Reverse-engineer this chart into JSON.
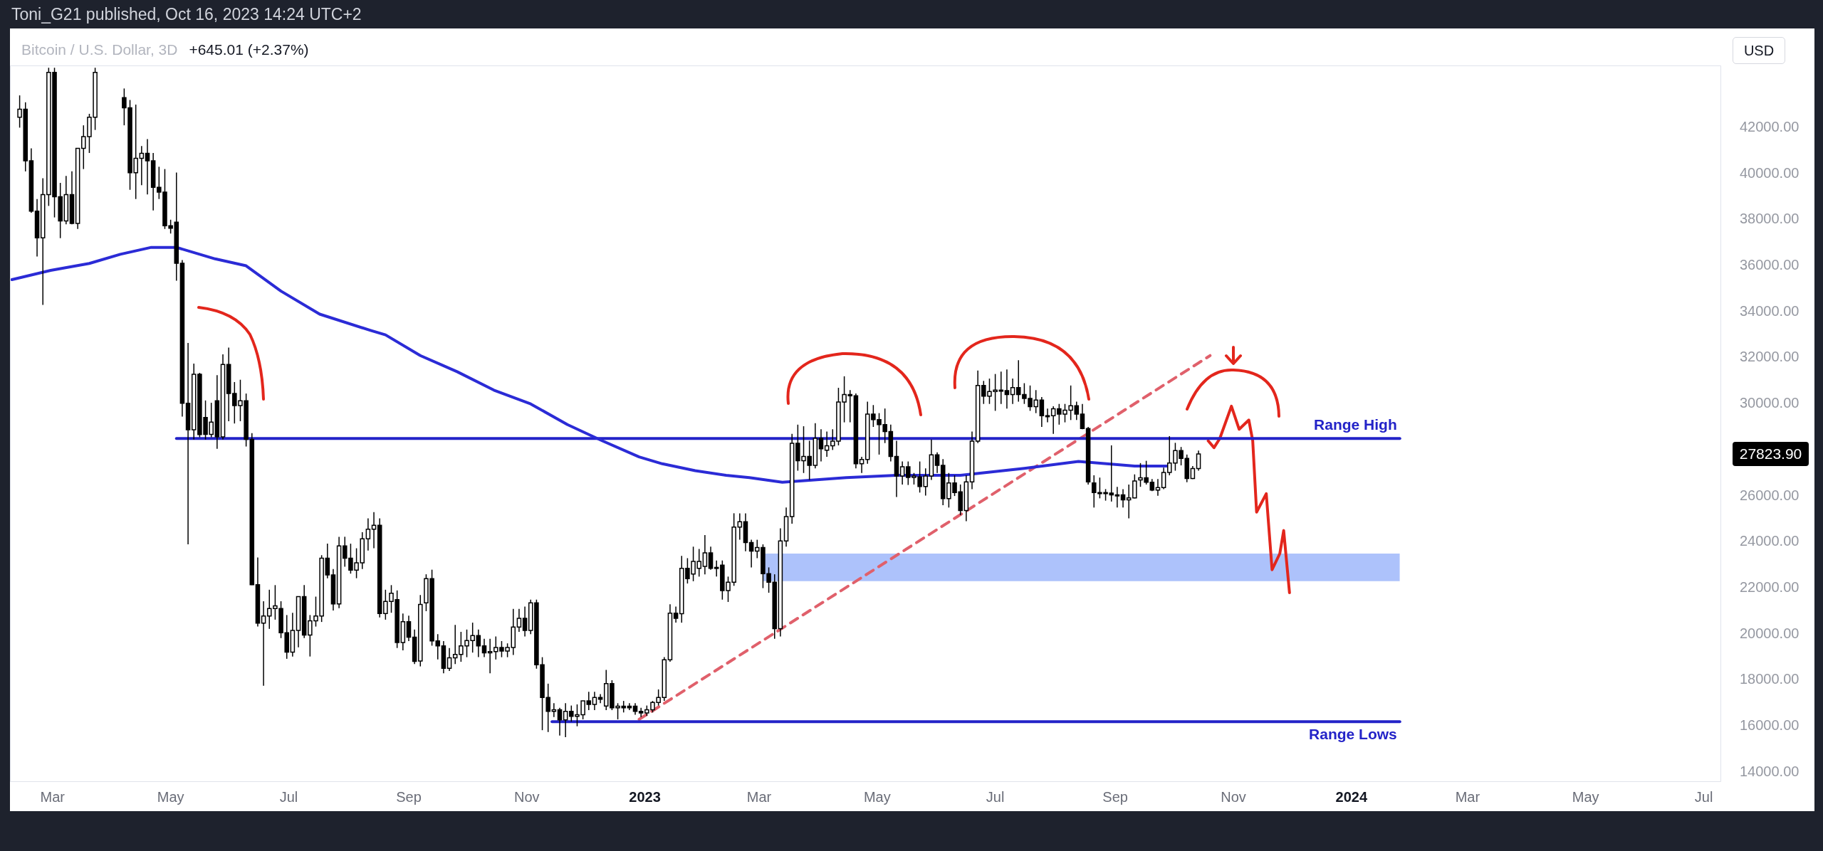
{
  "chart_data": {
    "type": "candlestick",
    "title": "Toni_G21 published, Oct 16, 2023 14:24 UTC+2",
    "subtitle": "Bitcoin / U.S. Dollar, 3D",
    "annotations": [
      "+645.01 (+2.37%)",
      "USD",
      "27823.90"
    ],
    "x": [
      "2022-02-12",
      "2022-02-15",
      "2022-02-18",
      "2022-02-21",
      "2022-02-24",
      "2022-02-27",
      "2022-03-02",
      "2022-03-05",
      "2022-03-08",
      "2022-03-11",
      "2022-03-14",
      "2022-03-17",
      "2022-03-20",
      "2022-03-23",
      "2022-04-07",
      "2022-04-10",
      "2022-04-13",
      "2022-04-16",
      "2022-04-19",
      "2022-04-22",
      "2022-04-25",
      "2022-04-28",
      "2022-05-01",
      "2022-05-04",
      "2022-05-07",
      "2022-05-10",
      "2022-05-13",
      "2022-05-16",
      "2022-05-19",
      "2022-05-22",
      "2022-05-25",
      "2022-05-28",
      "2022-05-31",
      "2022-06-03",
      "2022-06-06",
      "2022-06-09",
      "2022-06-12",
      "2022-06-15",
      "2022-06-18",
      "2022-06-21",
      "2022-06-24",
      "2022-06-27",
      "2022-06-30",
      "2022-07-03",
      "2022-07-06",
      "2022-07-09",
      "2022-07-12",
      "2022-07-15",
      "2022-07-18",
      "2022-07-21",
      "2022-07-24",
      "2022-07-27",
      "2022-07-30",
      "2022-08-02",
      "2022-08-05",
      "2022-08-08",
      "2022-08-11",
      "2022-08-14",
      "2022-08-17",
      "2022-08-20",
      "2022-08-23",
      "2022-08-26",
      "2022-08-29",
      "2022-09-01",
      "2022-09-04",
      "2022-09-07",
      "2022-09-10",
      "2022-09-13",
      "2022-09-16",
      "2022-09-19",
      "2022-09-22",
      "2022-09-25",
      "2022-09-28",
      "2022-10-01",
      "2022-10-04",
      "2022-10-07",
      "2022-10-10",
      "2022-10-13",
      "2022-10-16",
      "2022-10-19",
      "2022-10-22",
      "2022-10-25",
      "2022-10-28",
      "2022-10-31",
      "2022-11-03",
      "2022-11-06",
      "2022-11-09",
      "2022-11-12",
      "2022-11-15",
      "2022-11-18",
      "2022-11-21",
      "2022-11-24",
      "2022-11-27",
      "2022-11-30",
      "2022-12-03",
      "2022-12-06",
      "2022-12-09",
      "2022-12-12",
      "2022-12-15",
      "2022-12-18",
      "2022-12-21",
      "2022-12-24",
      "2022-12-27",
      "2022-12-30",
      "2023-01-02",
      "2023-01-05",
      "2023-01-08",
      "2023-01-11",
      "2023-01-14",
      "2023-01-17",
      "2023-01-20",
      "2023-01-23",
      "2023-01-26",
      "2023-01-29",
      "2023-02-01",
      "2023-02-04",
      "2023-02-07",
      "2023-02-10",
      "2023-02-13",
      "2023-02-16",
      "2023-02-19",
      "2023-02-22",
      "2023-02-25",
      "2023-02-28",
      "2023-03-03",
      "2023-03-06",
      "2023-03-09",
      "2023-03-12",
      "2023-03-15",
      "2023-03-18",
      "2023-03-21",
      "2023-03-24",
      "2023-03-27",
      "2023-03-30",
      "2023-04-02",
      "2023-04-05",
      "2023-04-08",
      "2023-04-11",
      "2023-04-14",
      "2023-04-17",
      "2023-04-20",
      "2023-04-23",
      "2023-04-26",
      "2023-04-29",
      "2023-05-02",
      "2023-05-05",
      "2023-05-08",
      "2023-05-11",
      "2023-05-14",
      "2023-05-17",
      "2023-05-20",
      "2023-05-23",
      "2023-05-26",
      "2023-05-29",
      "2023-06-01",
      "2023-06-04",
      "2023-06-07",
      "2023-06-10",
      "2023-06-13",
      "2023-06-16",
      "2023-06-19",
      "2023-06-22",
      "2023-06-25",
      "2023-06-28",
      "2023-07-01",
      "2023-07-04",
      "2023-07-07",
      "2023-07-10",
      "2023-07-13",
      "2023-07-16",
      "2023-07-19",
      "2023-07-22",
      "2023-07-25",
      "2023-07-28",
      "2023-07-31",
      "2023-08-03",
      "2023-08-06",
      "2023-08-09",
      "2023-08-12",
      "2023-08-15",
      "2023-08-18",
      "2023-08-21",
      "2023-08-24",
      "2023-08-27",
      "2023-08-30",
      "2023-09-02",
      "2023-09-05",
      "2023-09-08",
      "2023-09-11",
      "2023-09-14",
      "2023-09-17",
      "2023-09-20",
      "2023-09-23",
      "2023-09-26",
      "2023-09-29",
      "2023-10-02",
      "2023-10-05",
      "2023-10-08",
      "2023-10-11",
      "2023-10-14"
    ],
    "ohlc": [
      [
        42450,
        43400,
        42000,
        42800
      ],
      [
        42800,
        43100,
        40100,
        40560
      ],
      [
        40560,
        41100,
        38300,
        38370
      ],
      [
        38370,
        38900,
        36400,
        37210
      ],
      [
        37210,
        39800,
        34300,
        39090
      ],
      [
        39090,
        44600,
        38600,
        44400
      ],
      [
        44400,
        44600,
        38100,
        39000
      ],
      [
        39000,
        39600,
        37200,
        37950
      ],
      [
        37950,
        39900,
        37800,
        39090
      ],
      [
        39090,
        40100,
        37800,
        37840
      ],
      [
        37840,
        41100,
        37600,
        41100
      ],
      [
        41100,
        42100,
        40200,
        41610
      ],
      [
        41610,
        42600,
        40900,
        42450
      ],
      [
        42450,
        44600,
        41900,
        44400
      ],
      [
        43300,
        43700,
        42100,
        42860
      ],
      [
        42860,
        43200,
        39300,
        40040
      ],
      [
        40040,
        43000,
        38900,
        40670
      ],
      [
        40670,
        41200,
        39500,
        40880
      ],
      [
        40880,
        41500,
        39100,
        40560
      ],
      [
        40560,
        40900,
        38400,
        39410
      ],
      [
        39410,
        40300,
        38900,
        39200
      ],
      [
        39200,
        40200,
        37600,
        37740
      ],
      [
        37740,
        38000,
        37400,
        37630
      ],
      [
        37890,
        40050,
        35350,
        36110
      ],
      [
        36110,
        36250,
        29450,
        30030
      ],
      [
        30030,
        32650,
        23900,
        28880
      ],
      [
        28880,
        31750,
        28450,
        31290
      ],
      [
        31290,
        31350,
        28550,
        28670
      ],
      [
        29410,
        30150,
        28450,
        28680
      ],
      [
        28680,
        30050,
        28550,
        29210
      ],
      [
        30140,
        31250,
        28050,
        28570
      ],
      [
        28570,
        32150,
        28450,
        31710
      ],
      [
        31710,
        32450,
        29250,
        30450
      ],
      [
        30450,
        30950,
        29150,
        29930
      ],
      [
        29930,
        31050,
        29250,
        30140
      ],
      [
        30140,
        30450,
        28150,
        28460
      ],
      [
        28460,
        28730,
        22130,
        22150
      ],
      [
        22150,
        23330,
        20330,
        20480
      ],
      [
        20480,
        21430,
        17760,
        20790
      ],
      [
        20790,
        21930,
        20230,
        21110
      ],
      [
        21110,
        22130,
        20630,
        21230
      ],
      [
        21110,
        21430,
        19830,
        20060
      ],
      [
        20060,
        20830,
        18930,
        19220
      ],
      [
        19220,
        20930,
        19030,
        20160
      ],
      [
        20160,
        21630,
        19430,
        21630
      ],
      [
        21630,
        22130,
        19830,
        19960
      ],
      [
        19960,
        20830,
        19030,
        20580
      ],
      [
        20580,
        21630,
        20330,
        20790
      ],
      [
        20790,
        23430,
        20530,
        23300
      ],
      [
        23300,
        23930,
        22430,
        22570
      ],
      [
        22570,
        22830,
        21030,
        21310
      ],
      [
        21310,
        24230,
        21130,
        23830
      ],
      [
        23830,
        24230,
        22930,
        23300
      ],
      [
        23300,
        23930,
        22630,
        22780
      ],
      [
        22780,
        23730,
        22430,
        23100
      ],
      [
        23100,
        24430,
        22830,
        24140
      ],
      [
        24140,
        25030,
        23630,
        24560
      ],
      [
        24560,
        25300,
        23730,
        24730
      ],
      [
        24730,
        25030,
        20730,
        20900
      ],
      [
        20900,
        21930,
        20630,
        21420
      ],
      [
        21420,
        22130,
        20930,
        21780
      ],
      [
        21500,
        21900,
        19400,
        19640
      ],
      [
        19640,
        20900,
        19300,
        20540
      ],
      [
        20540,
        20800,
        19700,
        19870
      ],
      [
        19870,
        20200,
        18700,
        18820
      ],
      [
        18830,
        21700,
        18600,
        21290
      ],
      [
        21360,
        22600,
        21000,
        22410
      ],
      [
        22410,
        22800,
        19500,
        19710
      ],
      [
        19710,
        20000,
        18900,
        19490
      ],
      [
        19490,
        19700,
        18300,
        18520
      ],
      [
        18520,
        19400,
        18400,
        18970
      ],
      [
        18970,
        20400,
        18700,
        19120
      ],
      [
        19120,
        20100,
        18800,
        19490
      ],
      [
        19490,
        20200,
        19000,
        19720
      ],
      [
        19720,
        20500,
        19200,
        19940
      ],
      [
        19940,
        20200,
        19000,
        19490
      ],
      [
        19490,
        19800,
        19000,
        19190
      ],
      [
        19190,
        19800,
        18300,
        19240
      ],
      [
        19240,
        19900,
        18900,
        19420
      ],
      [
        19420,
        19700,
        19000,
        19270
      ],
      [
        19270,
        19600,
        19000,
        19420
      ],
      [
        19420,
        21100,
        19100,
        20310
      ],
      [
        20310,
        21100,
        20100,
        20690
      ],
      [
        20690,
        21200,
        19900,
        20160
      ],
      [
        20160,
        21500,
        20000,
        21360
      ],
      [
        21360,
        21500,
        18500,
        18670
      ],
      [
        18670,
        19000,
        15830,
        17250
      ],
      [
        17250,
        17850,
        15750,
        16650
      ],
      [
        16650,
        17000,
        16400,
        16720
      ],
      [
        16720,
        16800,
        15600,
        16280
      ],
      [
        16280,
        17000,
        15530,
        16650
      ],
      [
        16650,
        16900,
        16200,
        16430
      ],
      [
        16430,
        16950,
        16000,
        16500
      ],
      [
        16500,
        17100,
        16300,
        17100
      ],
      [
        17100,
        17500,
        16700,
        16950
      ],
      [
        16950,
        17500,
        16700,
        17250
      ],
      [
        17250,
        17400,
        17000,
        17170
      ],
      [
        16880,
        18450,
        16700,
        17850
      ],
      [
        17850,
        18000,
        16700,
        16800
      ],
      [
        16800,
        17000,
        16300,
        16870
      ],
      [
        16870,
        17100,
        16600,
        16800
      ],
      [
        16870,
        17000,
        16700,
        16800
      ],
      [
        16870,
        17000,
        16500,
        16650
      ],
      [
        16650,
        16800,
        16400,
        16580
      ],
      [
        16580,
        16900,
        16450,
        16720
      ],
      [
        16720,
        17100,
        16600,
        17030
      ],
      [
        17030,
        17600,
        16900,
        17250
      ],
      [
        17250,
        19000,
        17100,
        18890
      ],
      [
        18890,
        21300,
        18800,
        20910
      ],
      [
        20910,
        21200,
        20500,
        20690
      ],
      [
        20890,
        23400,
        20500,
        22860
      ],
      [
        22860,
        23300,
        22200,
        22410
      ],
      [
        22610,
        23800,
        22300,
        23160
      ],
      [
        22860,
        23700,
        22500,
        23160
      ],
      [
        22940,
        24300,
        22600,
        23530
      ],
      [
        23530,
        23800,
        22800,
        22860
      ],
      [
        22860,
        23200,
        22500,
        22900
      ],
      [
        23000,
        23200,
        21500,
        21890
      ],
      [
        21890,
        22500,
        21400,
        22260
      ],
      [
        22260,
        25250,
        22100,
        24650
      ],
      [
        24650,
        25250,
        24100,
        24880
      ],
      [
        24880,
        25250,
        23600,
        23980
      ],
      [
        23980,
        24100,
        22900,
        23610
      ],
      [
        23610,
        24100,
        23300,
        23760
      ],
      [
        23760,
        23900,
        22000,
        22630
      ],
      [
        22630,
        22900,
        21800,
        22260
      ],
      [
        22260,
        22600,
        19800,
        20240
      ],
      [
        20240,
        24600,
        19900,
        24050
      ],
      [
        24050,
        25500,
        23800,
        25110
      ],
      [
        25110,
        28700,
        24800,
        28290
      ],
      [
        28290,
        29100,
        27100,
        27530
      ],
      [
        27530,
        29030,
        27000,
        27720
      ],
      [
        27720,
        28400,
        26700,
        27330
      ],
      [
        27330,
        29160,
        27200,
        28510
      ],
      [
        28510,
        28900,
        27500,
        28050
      ],
      [
        27990,
        28800,
        27700,
        28180
      ],
      [
        28180,
        28900,
        28000,
        28380
      ],
      [
        28380,
        30700,
        28200,
        30080
      ],
      [
        30080,
        31200,
        29200,
        30410
      ],
      [
        30410,
        30600,
        29200,
        30350
      ],
      [
        30350,
        30450,
        27200,
        27400
      ],
      [
        27400,
        27700,
        27000,
        27590
      ],
      [
        27590,
        30100,
        27400,
        29560
      ],
      [
        29560,
        29950,
        29000,
        29320
      ],
      [
        29320,
        29600,
        27800,
        29100
      ],
      [
        29100,
        29800,
        28300,
        28800
      ],
      [
        28800,
        29100,
        27500,
        27720
      ],
      [
        27720,
        28400,
        25960,
        26870
      ],
      [
        26870,
        27500,
        26500,
        27270
      ],
      [
        27270,
        27500,
        26480,
        26810
      ],
      [
        26810,
        27000,
        26500,
        26870
      ],
      [
        26830,
        27500,
        26150,
        26410
      ],
      [
        26410,
        27200,
        26020,
        26870
      ],
      [
        26870,
        28450,
        26700,
        27790
      ],
      [
        27790,
        27900,
        27000,
        27330
      ],
      [
        27330,
        27600,
        25600,
        25890
      ],
      [
        25890,
        27000,
        25500,
        26570
      ],
      [
        26570,
        26900,
        26000,
        26150
      ],
      [
        26180,
        26500,
        25170,
        25370
      ],
      [
        25370,
        26900,
        24910,
        26610
      ],
      [
        26610,
        28800,
        26300,
        28380
      ],
      [
        28380,
        31450,
        28300,
        30800
      ],
      [
        30800,
        31000,
        30000,
        30340
      ],
      [
        30340,
        31100,
        30000,
        30540
      ],
      [
        30540,
        31300,
        29700,
        30600
      ],
      [
        30600,
        31400,
        30000,
        30580
      ],
      [
        30580,
        31500,
        29800,
        30410
      ],
      [
        30410,
        31100,
        30000,
        30710
      ],
      [
        30710,
        31900,
        30100,
        30410
      ],
      [
        30410,
        30900,
        30000,
        30240
      ],
      [
        30240,
        30800,
        29700,
        29880
      ],
      [
        29880,
        30600,
        29600,
        30170
      ],
      [
        30170,
        30300,
        29000,
        29490
      ],
      [
        29490,
        29800,
        29200,
        29490
      ],
      [
        29490,
        29900,
        28700,
        29790
      ],
      [
        29790,
        30000,
        29100,
        29560
      ],
      [
        29560,
        30000,
        29200,
        29730
      ],
      [
        29730,
        30800,
        29300,
        29920
      ],
      [
        29920,
        30100,
        29300,
        29560
      ],
      [
        29560,
        30000,
        28900,
        28930
      ],
      [
        28930,
        29000,
        26500,
        26610
      ],
      [
        26570,
        26900,
        25500,
        26150
      ],
      [
        26150,
        26800,
        25900,
        26150
      ],
      [
        26150,
        26300,
        25800,
        26130
      ],
      [
        26130,
        28200,
        25760,
        26050
      ],
      [
        26050,
        26400,
        25500,
        26050
      ],
      [
        26050,
        26300,
        25500,
        25830
      ],
      [
        25830,
        26500,
        25030,
        25920
      ],
      [
        25920,
        26940,
        25900,
        26650
      ],
      [
        26700,
        27430,
        26400,
        26790
      ],
      [
        26790,
        27530,
        26500,
        26600
      ],
      [
        26600,
        26740,
        26210,
        26260
      ],
      [
        26260,
        26740,
        26010,
        26370
      ],
      [
        26370,
        27230,
        26300,
        27020
      ],
      [
        27020,
        28600,
        26900,
        27430
      ],
      [
        27430,
        28310,
        27100,
        27970
      ],
      [
        27970,
        28130,
        27330,
        27630
      ],
      [
        27630,
        27800,
        26600,
        26760
      ],
      [
        26760,
        27300,
        26740,
        27190
      ],
      [
        27190,
        27970,
        27100,
        27823.9
      ]
    ],
    "series": [
      {
        "type": "line",
        "color": "#adc2fb",
        "x": [
          "2023-03-03",
          "2024-01-26"
        ],
        "values": [
          null,
          null
        ],
        "lower": [
          22300,
          22300
        ],
        "upper": [
          23500,
          23500
        ]
      },
      {
        "type": "line",
        "color": "#2b2bd6",
        "x": [
          "2022-02-08",
          "2022-02-28",
          "2022-03-20",
          "2022-04-05",
          "2022-04-21",
          "2022-05-04",
          "2022-05-24",
          "2022-06-09",
          "2022-06-27",
          "2022-07-17",
          "2022-08-12",
          "2022-08-20",
          "2022-09-07",
          "2022-09-26",
          "2022-10-15",
          "2022-11-03",
          "2022-11-22",
          "2022-12-10",
          "2022-12-29",
          "2023-01-10",
          "2023-01-27",
          "2023-02-12",
          "2023-02-24",
          "2023-03-13",
          "2023-04-15",
          "2023-05-11",
          "2023-06-13",
          "2023-07-16",
          "2023-08-13",
          "2023-09-11",
          "2023-09-29"
        ],
        "values": [
          35400,
          35800,
          36100,
          36500,
          36800,
          36800,
          36300,
          36000,
          34900,
          33900,
          33200,
          33000,
          32100,
          31400,
          30600,
          30000,
          29100,
          28400,
          27700,
          27400,
          27100,
          26900,
          26800,
          26600,
          26800,
          26900,
          26900,
          27200,
          27500,
          27300,
          27300
        ]
      },
      {
        "type": "line",
        "name": "Range High",
        "color": "#2323c8",
        "x": [
          "2022-05-04",
          "2024-01-26"
        ],
        "values": [
          28500,
          28500
        ]
      },
      {
        "type": "line",
        "name": "Range Lows",
        "color": "#2323c8",
        "x": [
          "2022-11-14",
          "2024-01-26"
        ],
        "values": [
          16200,
          16200
        ]
      },
      {
        "type": "line",
        "color": "#e0606b",
        "line_style": "dashed",
        "x": [
          "2022-12-29",
          "2023-10-20"
        ],
        "values": [
          16300,
          32100
        ]
      },
      {
        "type": "line",
        "color": "#e3261c",
        "x": [
          "2023-10-19",
          "2023-10-22",
          "2023-10-25",
          "2023-10-31",
          "2023-11-04",
          "2023-11-09",
          "2023-11-11",
          "2023-11-13",
          "2023-11-18",
          "2023-11-21",
          "2023-11-25",
          "2023-11-27",
          "2023-11-30"
        ],
        "values": [
          28400,
          28100,
          28500,
          29900,
          28900,
          29300,
          28400,
          25300,
          26100,
          22800,
          23500,
          24500,
          21800
        ]
      }
    ],
    "xlim": [
      "2022-02-07",
      "2024-07-10"
    ],
    "ylim": [
      13580,
      44700
    ],
    "xticks": [
      {
        "value": "2022-03-01",
        "label": "Mar"
      },
      {
        "value": "2022-05-01",
        "label": "May"
      },
      {
        "value": "2022-07-01",
        "label": "Jul"
      },
      {
        "value": "2022-09-01",
        "label": "Sep"
      },
      {
        "value": "2022-11-01",
        "label": "Nov"
      },
      {
        "value": "2023-01-01",
        "label": "2023"
      },
      {
        "value": "2023-03-01",
        "label": "Mar"
      },
      {
        "value": "2023-05-01",
        "label": "May"
      },
      {
        "value": "2023-07-01",
        "label": "Jul"
      },
      {
        "value": "2023-09-01",
        "label": "Sep"
      },
      {
        "value": "2023-11-01",
        "label": "Nov"
      },
      {
        "value": "2024-01-01",
        "label": "2024"
      },
      {
        "value": "2024-03-01",
        "label": "Mar"
      },
      {
        "value": "2024-05-01",
        "label": "May"
      },
      {
        "value": "2024-07-01",
        "label": "Jul"
      }
    ],
    "yticks": [
      {
        "value": 14000,
        "label": "14000.00"
      },
      {
        "value": 16000,
        "label": "16000.00"
      },
      {
        "value": 18000,
        "label": "18000.00"
      },
      {
        "value": 20000,
        "label": "20000.00"
      },
      {
        "value": 22000,
        "label": "22000.00"
      },
      {
        "value": 24000,
        "label": "24000.00"
      },
      {
        "value": 26000,
        "label": "26000.00"
      },
      {
        "value": 30000,
        "label": "30000.00"
      },
      {
        "value": 32000,
        "label": "32000.00"
      },
      {
        "value": 34000,
        "label": "34000.00"
      },
      {
        "value": 36000,
        "label": "36000.00"
      },
      {
        "value": 38000,
        "label": "38000.00"
      },
      {
        "value": 40000,
        "label": "40000.00"
      },
      {
        "value": 42000,
        "label": "42000.00"
      }
    ]
  }
}
